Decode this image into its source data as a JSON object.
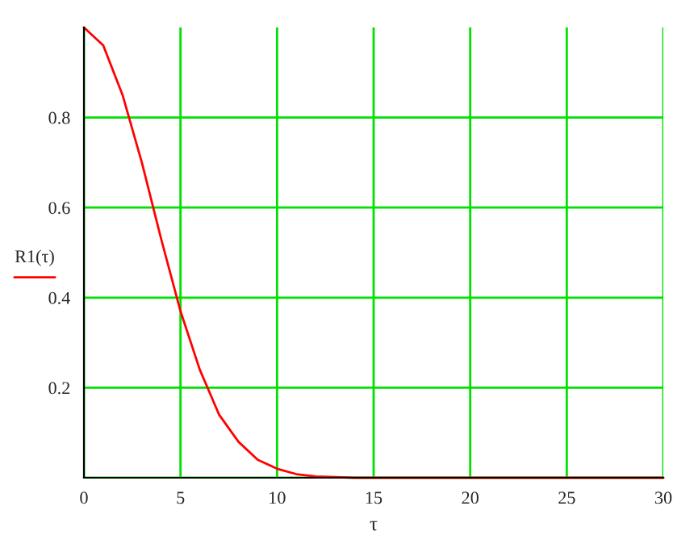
{
  "chart_data": {
    "type": "line",
    "xlabel": "τ",
    "x": [
      0,
      1,
      2,
      3,
      4,
      5,
      6,
      7,
      8,
      9,
      10,
      11,
      12,
      14,
      20,
      30
    ],
    "series": [
      {
        "name": "R1(τ)",
        "color": "#ff0000",
        "values": [
          1,
          0.96,
          0.85,
          0.7,
          0.53,
          0.37,
          0.24,
          0.14,
          0.08,
          0.04,
          0.02,
          0.008,
          0.003,
          0,
          0,
          0
        ]
      }
    ],
    "xlim": [
      0,
      30
    ],
    "xticks": [
      0,
      5,
      10,
      15,
      20,
      25,
      30
    ],
    "ylim": [
      0,
      1
    ],
    "yticks": [
      {
        "value": 0,
        "label": null
      },
      0.2,
      0.4,
      0.6,
      0.8
    ],
    "grid": true,
    "legend": "left",
    "line_style": "solid",
    "marker": "none"
  }
}
